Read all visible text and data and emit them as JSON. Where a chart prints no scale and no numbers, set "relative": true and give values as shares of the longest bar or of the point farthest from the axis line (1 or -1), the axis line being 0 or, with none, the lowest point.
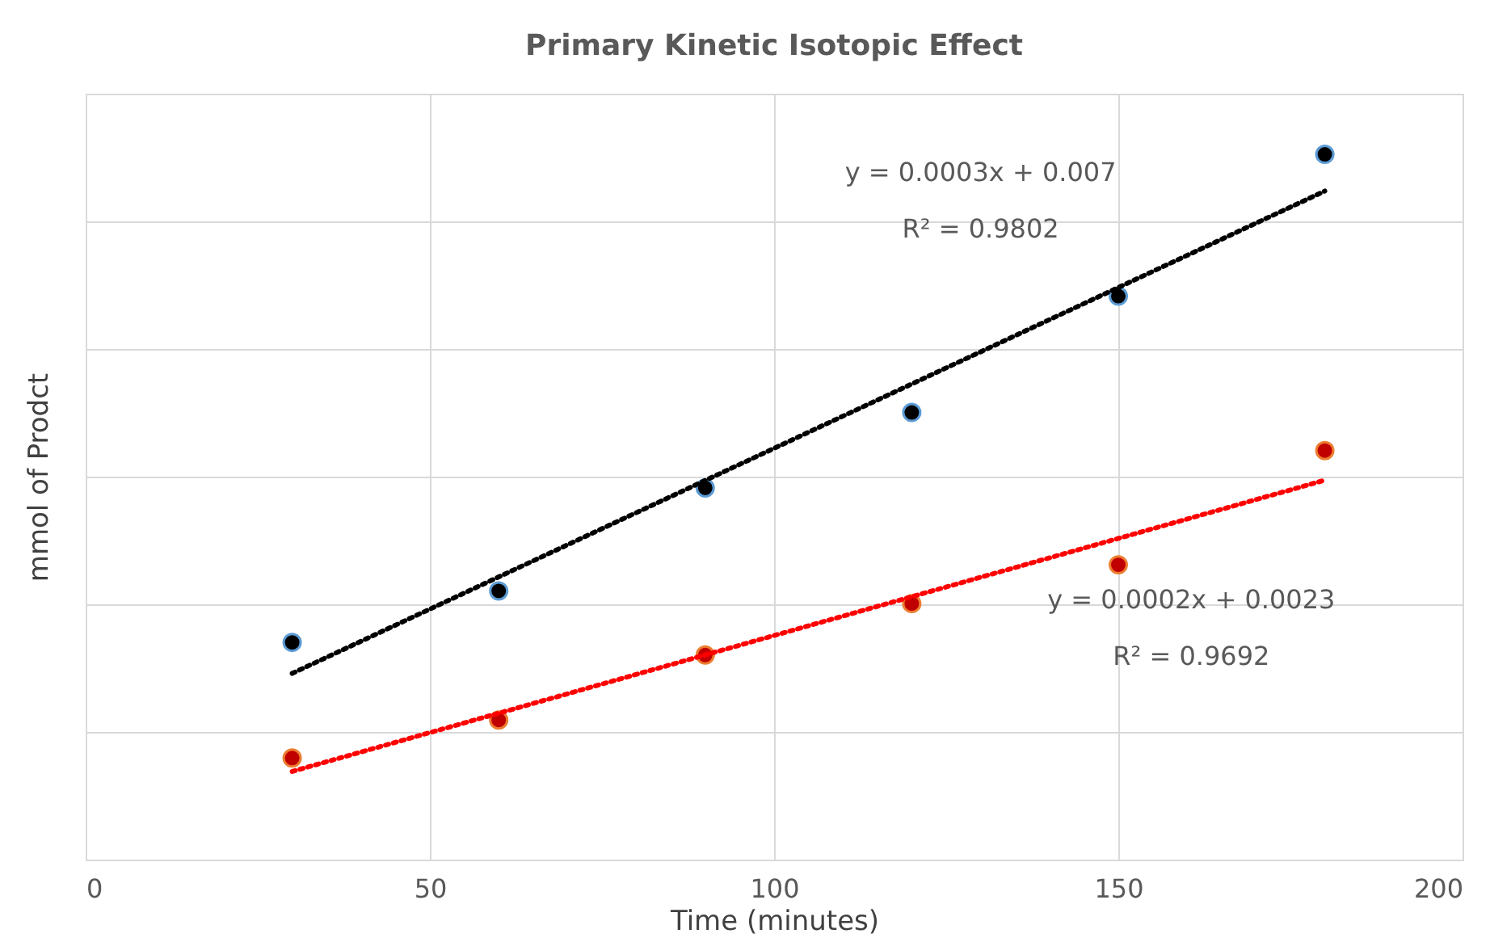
{
  "chart_data": {
    "type": "scatter",
    "title": "Primary Kinetic Isotopic Effect",
    "xlabel": "Time (minutes)",
    "ylabel": "mmol of Prodct",
    "relative": true,
    "xlim": [
      0,
      200
    ],
    "xticks": [
      0,
      50,
      100,
      150,
      200
    ],
    "tick_labels": "x",
    "grid": true,
    "legend": false,
    "marker": "circle",
    "series": [
      {
        "color": "#000000",
        "x": [
          30,
          60,
          90,
          120,
          150,
          180
        ],
        "values": [
          0.308,
          0.381,
          0.527,
          0.634,
          0.799,
          1.0
        ]
      },
      {
        "color": "#c00000",
        "x": [
          30,
          60,
          90,
          120,
          150,
          180
        ],
        "values": [
          0.144,
          0.198,
          0.29,
          0.363,
          0.418,
          0.58
        ]
      },
      {
        "type": "line",
        "color": "#000000",
        "line_style": "dotted",
        "marker": "none",
        "x": [
          30,
          180
        ],
        "values": [
          0.264,
          0.948
        ]
      },
      {
        "type": "line",
        "color": "#ff0000",
        "line_style": "dotted",
        "marker": "none",
        "x": [
          30,
          180
        ],
        "values": [
          0.125,
          0.538
        ]
      }
    ],
    "annotations": [
      "y = 0.0003x + 0.007",
      "R² = 0.9802",
      "y = 0.0002x + 0.0023",
      "R² = 0.9692"
    ]
  }
}
